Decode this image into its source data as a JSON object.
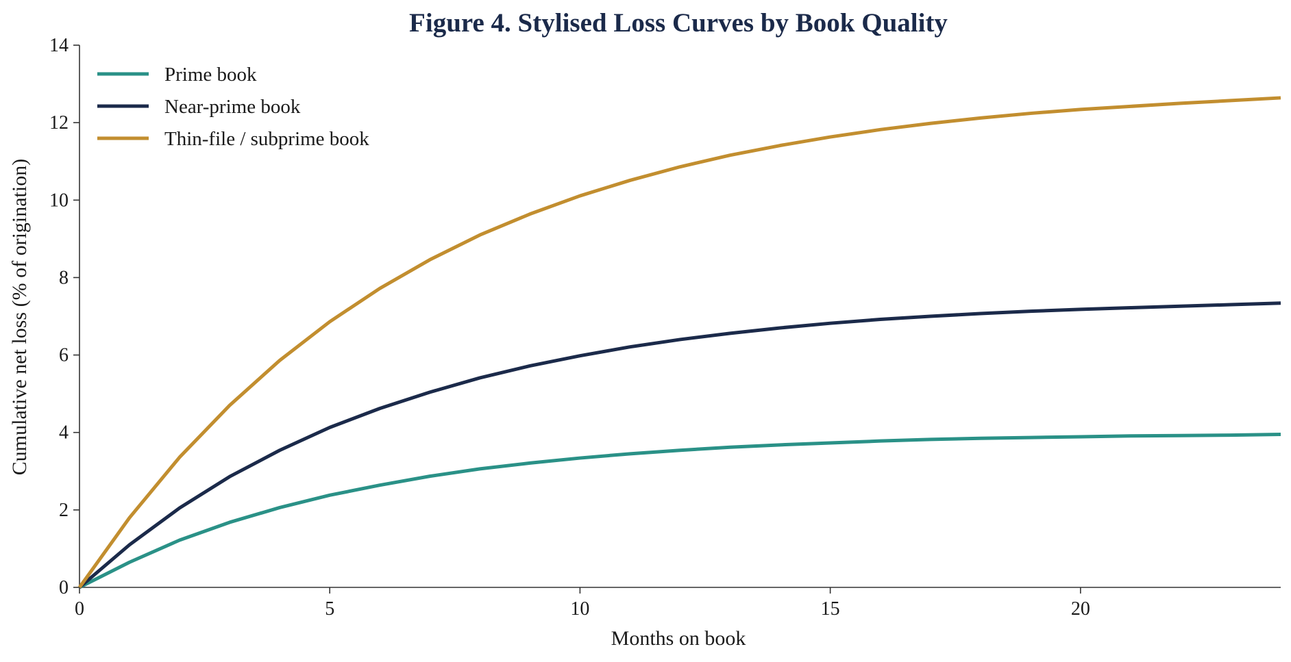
{
  "chart_data": {
    "type": "line",
    "title": "Figure 4. Stylised Loss Curves by Book Quality",
    "xlabel": "Months on book",
    "ylabel": "Cumulative net loss (% of origination)",
    "xlim": [
      0,
      24
    ],
    "ylim": [
      0,
      14
    ],
    "xticks": [
      0,
      5,
      10,
      15,
      20
    ],
    "yticks": [
      0,
      2,
      4,
      6,
      8,
      10,
      12,
      14
    ],
    "grid": false,
    "legend_position": "top-left",
    "title_color": "#1b2a4a",
    "x": [
      0,
      1,
      2,
      3,
      4,
      5,
      6,
      7,
      8,
      9,
      10,
      11,
      12,
      13,
      14,
      15,
      16,
      17,
      18,
      19,
      20,
      21,
      22,
      23,
      24
    ],
    "series": [
      {
        "name": "Prime book",
        "color": "#2a9187",
        "values": [
          0,
          0.65,
          1.22,
          1.68,
          2.06,
          2.38,
          2.64,
          2.87,
          3.06,
          3.21,
          3.34,
          3.45,
          3.54,
          3.62,
          3.68,
          3.73,
          3.78,
          3.82,
          3.85,
          3.87,
          3.89,
          3.91,
          3.92,
          3.93,
          3.95
        ]
      },
      {
        "name": "Near-prime book",
        "color": "#1b2a4a",
        "values": [
          0,
          1.1,
          2.05,
          2.86,
          3.54,
          4.13,
          4.62,
          5.04,
          5.41,
          5.72,
          5.98,
          6.21,
          6.4,
          6.56,
          6.7,
          6.82,
          6.92,
          7.0,
          7.07,
          7.13,
          7.18,
          7.22,
          7.26,
          7.3,
          7.34
        ]
      },
      {
        "name": "Thin-file / subprime book",
        "color": "#c28e2f",
        "values": [
          0,
          1.8,
          3.36,
          4.7,
          5.86,
          6.86,
          7.72,
          8.46,
          9.1,
          9.64,
          10.11,
          10.51,
          10.86,
          11.16,
          11.41,
          11.63,
          11.82,
          11.98,
          12.12,
          12.24,
          12.34,
          12.42,
          12.5,
          12.57,
          12.64
        ]
      }
    ]
  }
}
